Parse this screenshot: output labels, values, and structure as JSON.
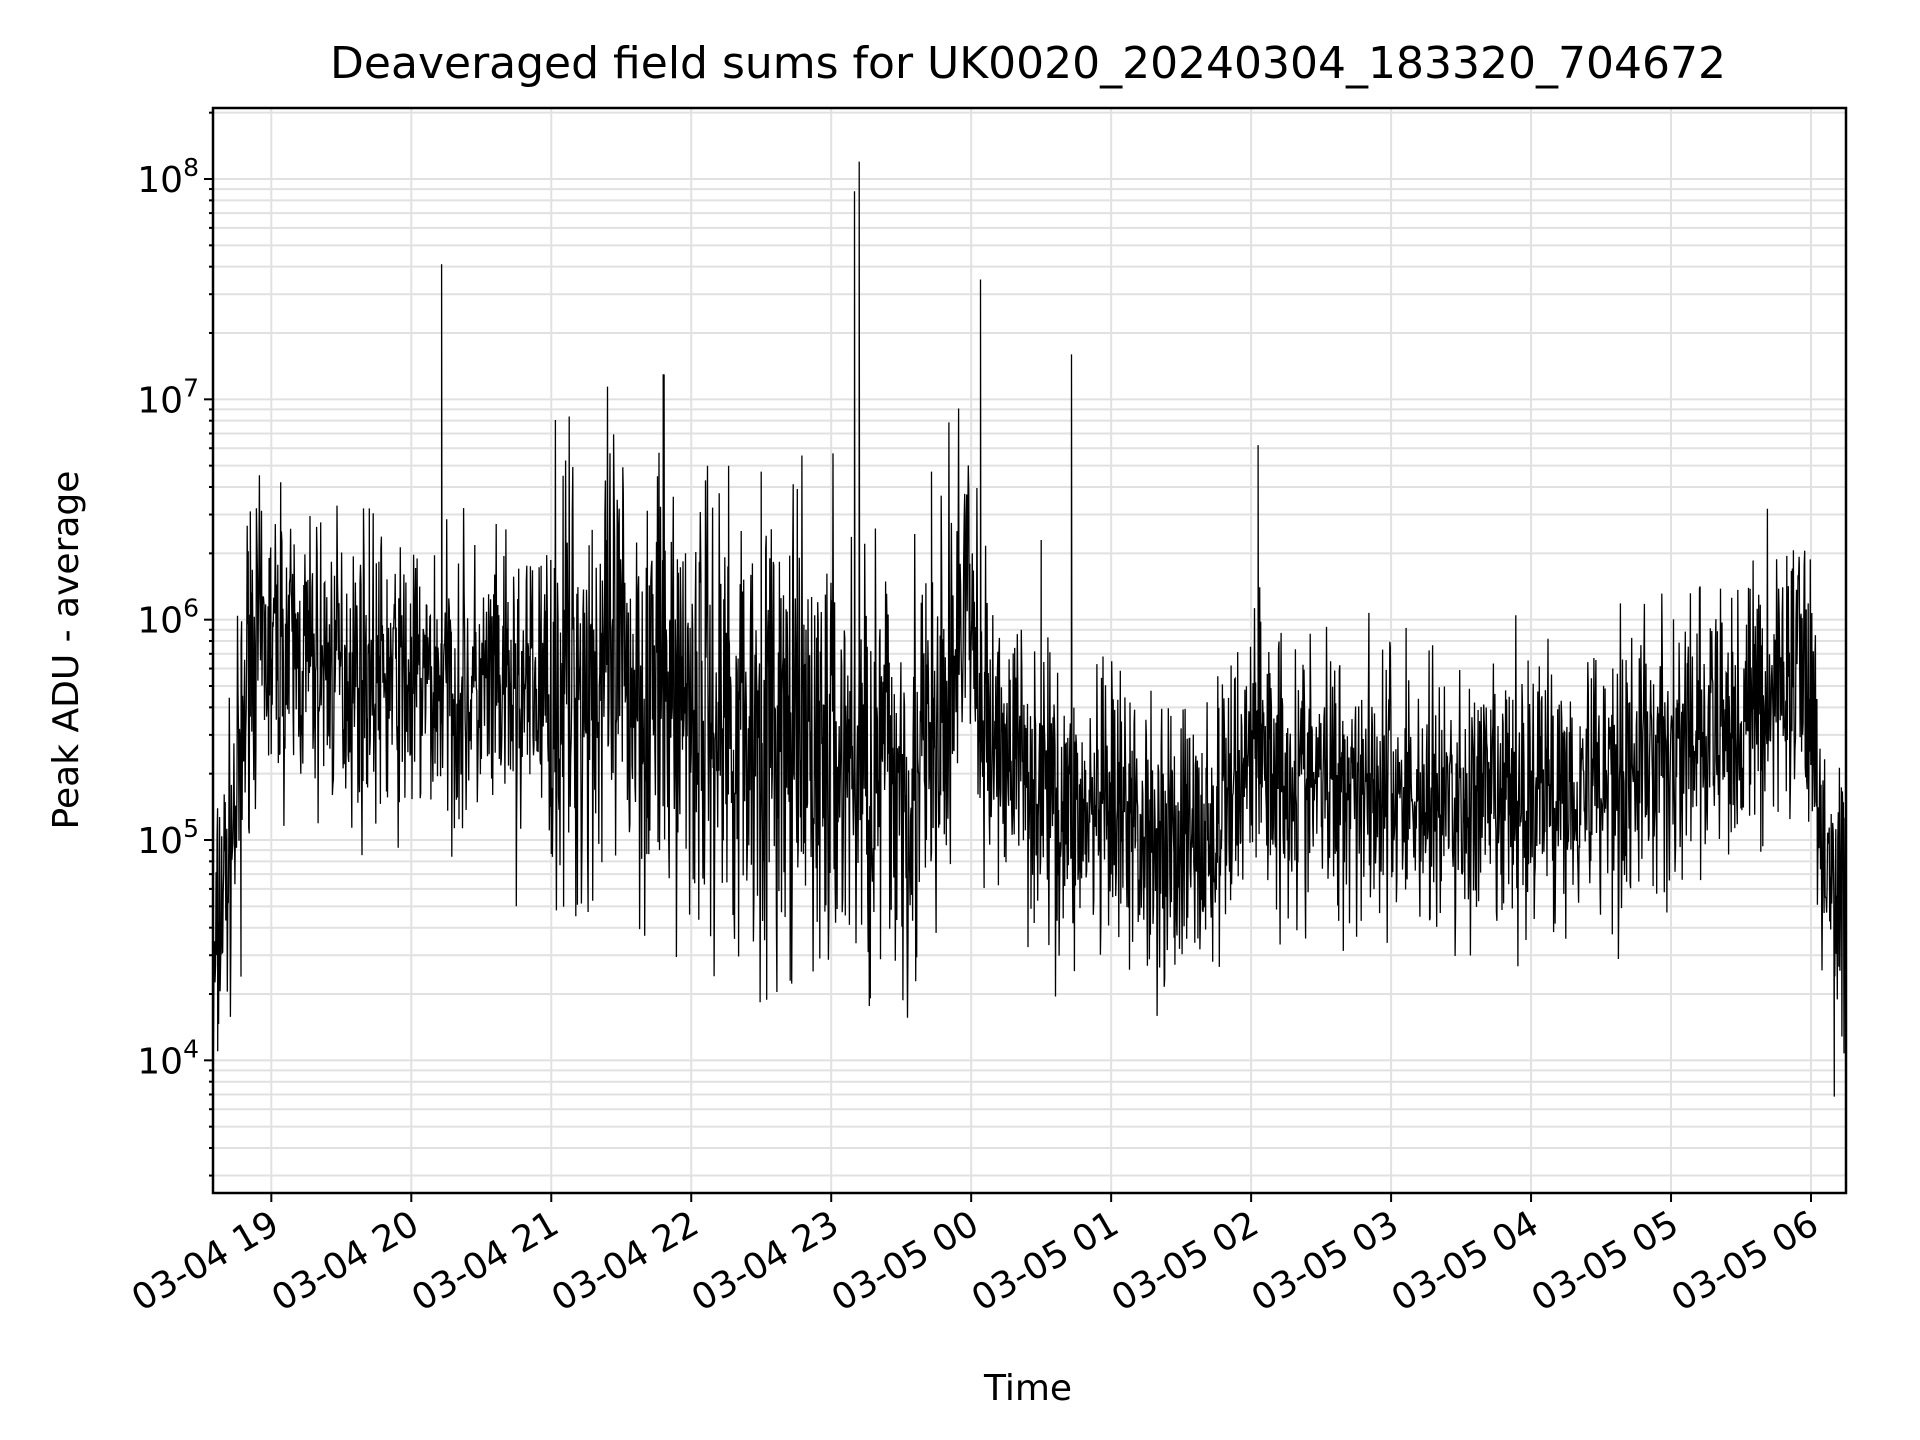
{
  "chart_data": {
    "type": "line",
    "title": "Deaveraged field sums for UK0020_20240304_183320_704672",
    "xlabel": "Time",
    "ylabel": "Peak ADU - average",
    "yscale": "log",
    "ylim": [
      2500,
      210000000
    ],
    "xlim": [
      "2024-03-04 18:35",
      "2024-03-05 06:15"
    ],
    "grid": true,
    "legend": "none",
    "line_color": "#000000",
    "x_ticks": [
      {
        "value": "2024-03-04 19:00",
        "label": "03-04 19"
      },
      {
        "value": "2024-03-04 20:00",
        "label": "03-04 20"
      },
      {
        "value": "2024-03-04 21:00",
        "label": "03-04 21"
      },
      {
        "value": "2024-03-04 22:00",
        "label": "03-04 22"
      },
      {
        "value": "2024-03-04 23:00",
        "label": "03-04 23"
      },
      {
        "value": "2024-03-05 00:00",
        "label": "03-05 00"
      },
      {
        "value": "2024-03-05 01:00",
        "label": "03-05 01"
      },
      {
        "value": "2024-03-05 02:00",
        "label": "03-05 02"
      },
      {
        "value": "2024-03-05 03:00",
        "label": "03-05 03"
      },
      {
        "value": "2024-03-05 04:00",
        "label": "03-05 04"
      },
      {
        "value": "2024-03-05 05:00",
        "label": "03-05 05"
      },
      {
        "value": "2024-03-05 06:00",
        "label": "03-05 06"
      }
    ],
    "y_ticks": [
      {
        "value": 10000,
        "base": "10",
        "exp": "4"
      },
      {
        "value": 100000,
        "base": "10",
        "exp": "5"
      },
      {
        "value": 1000000,
        "base": "10",
        "exp": "6"
      },
      {
        "value": 10000000,
        "base": "10",
        "exp": "7"
      },
      {
        "value": 100000000,
        "base": "10",
        "exp": "8"
      }
    ],
    "series": [
      {
        "x": [
          "2024-03-04 18:35",
          "2024-03-04 18:36",
          "2024-03-04 18:38",
          "2024-03-04 18:40",
          "2024-03-04 18:42",
          "2024-03-04 18:45",
          "2024-03-04 18:48",
          "2024-03-04 18:50",
          "2024-03-04 18:52",
          "2024-03-04 18:55",
          "2024-03-04 18:58",
          "2024-03-04 19:00",
          "2024-03-04 19:15",
          "2024-03-04 19:30",
          "2024-03-04 19:45",
          "2024-03-04 20:00",
          "2024-03-04 20:15",
          "2024-03-04 20:30",
          "2024-03-04 20:45",
          "2024-03-04 21:00",
          "2024-03-04 21:15",
          "2024-03-04 21:30",
          "2024-03-04 21:45",
          "2024-03-04 22:00",
          "2024-03-04 22:15",
          "2024-03-04 22:30",
          "2024-03-04 22:45",
          "2024-03-04 23:00",
          "2024-03-04 23:15",
          "2024-03-04 23:30",
          "2024-03-04 23:45",
          "2024-03-04 23:58",
          "2024-03-05 00:05",
          "2024-03-05 00:20",
          "2024-03-05 00:35",
          "2024-03-05 00:50",
          "2024-03-05 01:00",
          "2024-03-05 01:15",
          "2024-03-05 01:30",
          "2024-03-05 01:45",
          "2024-03-05 02:00",
          "2024-03-05 02:15",
          "2024-03-05 02:30",
          "2024-03-05 02:45",
          "2024-03-05 03:00",
          "2024-03-05 03:15",
          "2024-03-05 03:30",
          "2024-03-05 03:45",
          "2024-03-05 04:00",
          "2024-03-05 04:15",
          "2024-03-05 04:30",
          "2024-03-05 04:45",
          "2024-03-05 05:00",
          "2024-03-05 05:15",
          "2024-03-05 05:30",
          "2024-03-05 05:45",
          "2024-03-05 05:58",
          "2024-03-05 06:03",
          "2024-03-05 06:06",
          "2024-03-05 06:09",
          "2024-03-05 06:12",
          "2024-03-05 06:15"
        ],
        "y": [
          11000,
          28000,
          50000,
          65000,
          80000,
          150000,
          300000,
          700000,
          800000,
          750000,
          700000,
          750000,
          650000,
          600000,
          550000,
          500000,
          500000,
          450000,
          450000,
          500000,
          550000,
          550000,
          500000,
          450000,
          350000,
          300000,
          250000,
          250000,
          220000,
          200000,
          200000,
          1500000,
          300000,
          250000,
          150000,
          120000,
          120000,
          110000,
          100000,
          100000,
          300000,
          200000,
          180000,
          200000,
          170000,
          150000,
          140000,
          140000,
          170000,
          180000,
          200000,
          220000,
          250000,
          280000,
          350000,
          500000,
          700000,
          150000,
          70000,
          50000,
          60000,
          70000
        ]
      }
    ],
    "spikes": [
      {
        "x": "2024-03-04 18:51",
        "y": 3100000
      },
      {
        "x": "2024-03-04 19:04",
        "y": 4200000
      },
      {
        "x": "2024-03-04 19:42",
        "y": 3200000
      },
      {
        "x": "2024-03-04 20:13",
        "y": 41000000
      },
      {
        "x": "2024-03-04 21:48",
        "y": 13000000
      },
      {
        "x": "2024-03-04 22:16",
        "y": 5000000
      },
      {
        "x": "2024-03-04 22:30",
        "y": 4700000
      },
      {
        "x": "2024-03-04 23:10",
        "y": 88000000
      },
      {
        "x": "2024-03-04 23:12",
        "y": 120000000
      },
      {
        "x": "2024-03-04 23:43",
        "y": 4700000
      },
      {
        "x": "2024-03-05 00:04",
        "y": 35000000
      },
      {
        "x": "2024-03-05 00:30",
        "y": 2300000
      },
      {
        "x": "2024-03-05 00:43",
        "y": 16000000
      },
      {
        "x": "2024-03-05 02:03",
        "y": 6200000
      },
      {
        "x": "2024-03-05 05:55",
        "y": 1800000
      }
    ],
    "dips": [
      {
        "x": "2024-03-04 18:37",
        "y": 11000
      },
      {
        "x": "2024-03-04 18:47",
        "y": 24000
      },
      {
        "x": "2024-03-04 20:45",
        "y": 50000
      },
      {
        "x": "2024-03-05 00:27",
        "y": 42000
      },
      {
        "x": "2024-03-05 01:27",
        "y": 36000
      },
      {
        "x": "2024-03-05 06:10",
        "y": 27000
      }
    ]
  }
}
